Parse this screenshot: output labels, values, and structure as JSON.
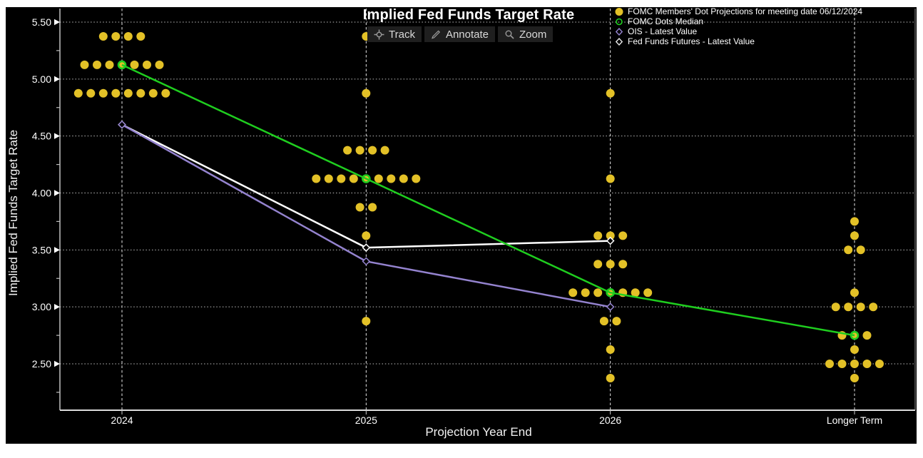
{
  "page": {
    "background": "#ffffff",
    "canvas_bg": "#000000"
  },
  "title": "Implied Fed Funds Target Rate",
  "toolbar": {
    "buttons": [
      {
        "name": "track",
        "label": "Track"
      },
      {
        "name": "annotate",
        "label": "Annotate"
      },
      {
        "name": "zoom",
        "label": "Zoom"
      }
    ]
  },
  "chart_data": {
    "type": "scatter",
    "subtype": "fomc-dot-plot",
    "title": "Implied Fed Funds Target Rate",
    "xlabel": "Projection Year End",
    "ylabel": "Implied Fed Funds Target Rate",
    "categories": [
      "2024",
      "2025",
      "2026",
      "Longer Term"
    ],
    "ylim": [
      2.1,
      5.6
    ],
    "yticks": [
      5.5,
      5.0,
      4.5,
      4.0,
      3.5,
      3.0,
      2.5
    ],
    "ytick_labels": [
      "5.50",
      "5.00",
      "4.50",
      "4.00",
      "3.50",
      "3.00",
      "2.50"
    ],
    "yminor_step": 0.25,
    "grid": {
      "horizontal": "dotted",
      "vertical": "dashed"
    },
    "legend_position": "top-right",
    "legend": [
      {
        "label": "FOMC Members' Dot Projections for meeting date 06/12/2024",
        "marker": "filled-circle",
        "color": "#E3C127"
      },
      {
        "label": "FOMC Dots Median",
        "marker": "open-circle",
        "color": "#1FCE1F"
      },
      {
        "label": "OIS - Latest Value",
        "marker": "open-diamond",
        "color": "#9483CF"
      },
      {
        "label": "Fed Funds Futures - Latest Value",
        "marker": "open-diamond",
        "color": "#E8E8E8"
      }
    ],
    "dot_projections": {
      "label": "FOMC Members' Dot Projections for meeting date 06/12/2024",
      "color": "#E3C127",
      "data": [
        {
          "category": "2024",
          "rows": [
            {
              "rate": 5.375,
              "count": 4
            },
            {
              "rate": 5.125,
              "count": 7
            },
            {
              "rate": 4.875,
              "count": 8
            }
          ]
        },
        {
          "category": "2025",
          "rows": [
            {
              "rate": 5.375,
              "count": 1
            },
            {
              "rate": 4.875,
              "count": 1
            },
            {
              "rate": 4.375,
              "count": 4
            },
            {
              "rate": 4.125,
              "count": 9
            },
            {
              "rate": 3.875,
              "count": 2
            },
            {
              "rate": 3.625,
              "count": 1
            },
            {
              "rate": 2.875,
              "count": 1
            }
          ]
        },
        {
          "category": "2026",
          "rows": [
            {
              "rate": 4.875,
              "count": 1
            },
            {
              "rate": 4.125,
              "count": 1
            },
            {
              "rate": 3.625,
              "count": 3
            },
            {
              "rate": 3.375,
              "count": 3
            },
            {
              "rate": 3.125,
              "count": 7
            },
            {
              "rate": 2.875,
              "count": 2
            },
            {
              "rate": 2.625,
              "count": 1
            },
            {
              "rate": 2.375,
              "count": 1
            }
          ]
        },
        {
          "category": "Longer Term",
          "rows": [
            {
              "rate": 3.75,
              "count": 1
            },
            {
              "rate": 3.625,
              "count": 1
            },
            {
              "rate": 3.5,
              "count": 2
            },
            {
              "rate": 3.125,
              "count": 1
            },
            {
              "rate": 3.0,
              "count": 4
            },
            {
              "rate": 2.75,
              "count": 3
            },
            {
              "rate": 2.625,
              "count": 1
            },
            {
              "rate": 2.5,
              "count": 5
            },
            {
              "rate": 2.375,
              "count": 1
            }
          ]
        }
      ]
    },
    "series": [
      {
        "name": "Fed Funds Futures - Latest Value",
        "color": "#FFFFFF",
        "marker": "open-diamond",
        "line_width": 2.5,
        "categories": [
          "2024",
          "2025",
          "2026"
        ],
        "values": [
          4.6,
          3.52,
          3.58
        ]
      },
      {
        "name": "OIS - Latest Value",
        "color": "#9483CF",
        "marker": "open-diamond",
        "line_width": 2.5,
        "categories": [
          "2024",
          "2025",
          "2026"
        ],
        "values": [
          4.6,
          3.4,
          3.0
        ]
      },
      {
        "name": "FOMC Dots Median",
        "color": "#1FCE1F",
        "marker": "open-circle",
        "line_width": 2.5,
        "categories": [
          "2024",
          "2025",
          "2026",
          "Longer Term"
        ],
        "values": [
          5.125,
          4.125,
          3.125,
          2.75
        ]
      }
    ]
  }
}
